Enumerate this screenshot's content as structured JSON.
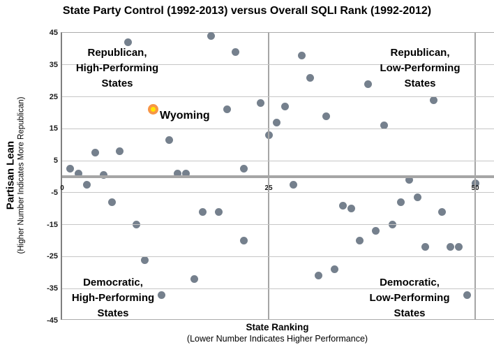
{
  "title": "State Party Control (1992-2013) versus Overall SQLI Rank (1992-2012)",
  "y_axis": {
    "label": "Partisan Lean",
    "sublabel": "(Higher Number Indicates More Republican)",
    "ticks": [
      45,
      35,
      25,
      15,
      5,
      -5,
      -15,
      -25,
      -35,
      -45
    ]
  },
  "x_axis": {
    "label": "State Ranking",
    "sublabel": "(Lower Number Indicates Higher Performance)",
    "ticks": [
      0,
      25,
      50
    ]
  },
  "quadrants": {
    "top_left": [
      "Republican,",
      "High-Performing",
      "States"
    ],
    "top_right": [
      "Republican,",
      "Low-Performing",
      "States"
    ],
    "bottom_left": [
      "Democratic,",
      "High-Performing",
      "States"
    ],
    "bottom_right": [
      "Democratic,",
      "Low-Performing",
      "States"
    ]
  },
  "colors": {
    "dot": "#75808d",
    "highlight_ring": "#f79646",
    "highlight_center": "#ffe600",
    "gridline": "#c6c6c6",
    "axis_heavy": "#a6a6a6"
  },
  "chart_data": {
    "type": "scatter",
    "title": "State Party Control (1992-2013) versus Overall SQLI Rank (1992-2012)",
    "xlabel": "State Ranking (Lower Number Indicates Higher Performance)",
    "ylabel": "Partisan Lean (Higher Number Indicates More Republican)",
    "xlim": [
      0,
      52.5
    ],
    "ylim": [
      -45,
      45
    ],
    "x_gridlines": [
      25,
      50
    ],
    "legend": "none",
    "points": [
      {
        "x": 1,
        "y": 2.5
      },
      {
        "x": 2,
        "y": 1
      },
      {
        "x": 3,
        "y": -2.5
      },
      {
        "x": 4,
        "y": 7.5
      },
      {
        "x": 5,
        "y": 0.5
      },
      {
        "x": 6,
        "y": -8
      },
      {
        "x": 7,
        "y": 8
      },
      {
        "x": 8,
        "y": 42
      },
      {
        "x": 9,
        "y": -15
      },
      {
        "x": 10,
        "y": -26
      },
      {
        "x": 12,
        "y": -37
      },
      {
        "x": 13,
        "y": 11.5
      },
      {
        "x": 14,
        "y": 1
      },
      {
        "x": 15,
        "y": 1
      },
      {
        "x": 16,
        "y": -32
      },
      {
        "x": 17,
        "y": -11
      },
      {
        "x": 18,
        "y": 44
      },
      {
        "x": 19,
        "y": -11
      },
      {
        "x": 20,
        "y": 21
      },
      {
        "x": 21,
        "y": 39
      },
      {
        "x": 22,
        "y": 2.5
      },
      {
        "x": 22,
        "y": -20
      },
      {
        "x": 24,
        "y": 23
      },
      {
        "x": 25,
        "y": 13
      },
      {
        "x": 26,
        "y": 17
      },
      {
        "x": 27,
        "y": 22
      },
      {
        "x": 28,
        "y": -2.5
      },
      {
        "x": 29,
        "y": 38
      },
      {
        "x": 30,
        "y": 31
      },
      {
        "x": 31,
        "y": -31
      },
      {
        "x": 32,
        "y": 19
      },
      {
        "x": 33,
        "y": -29
      },
      {
        "x": 34,
        "y": -9
      },
      {
        "x": 35,
        "y": -10
      },
      {
        "x": 36,
        "y": -20
      },
      {
        "x": 37,
        "y": 29
      },
      {
        "x": 38,
        "y": -17
      },
      {
        "x": 39,
        "y": 16
      },
      {
        "x": 40,
        "y": -15
      },
      {
        "x": 41,
        "y": -8
      },
      {
        "x": 42,
        "y": -1
      },
      {
        "x": 43,
        "y": -6.5
      },
      {
        "x": 44,
        "y": -22
      },
      {
        "x": 45,
        "y": 24
      },
      {
        "x": 46,
        "y": -11
      },
      {
        "x": 47,
        "y": -22
      },
      {
        "x": 48,
        "y": -22
      },
      {
        "x": 49,
        "y": -37
      },
      {
        "x": 50,
        "y": -2
      }
    ],
    "highlight": {
      "label": "Wyoming",
      "x": 11,
      "y": 21
    }
  }
}
